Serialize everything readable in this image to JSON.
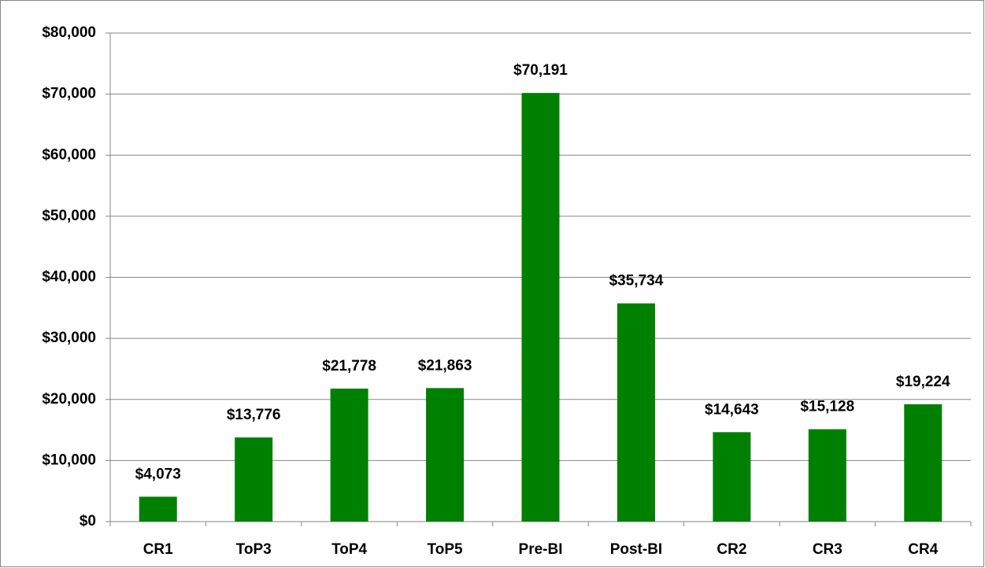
{
  "chart_data": {
    "type": "bar",
    "categories": [
      "CR1",
      "ToP3",
      "ToP4",
      "ToP5",
      "Pre-BI",
      "Post-BI",
      "CR2",
      "CR3",
      "CR4"
    ],
    "values": [
      4073,
      13776,
      21778,
      21863,
      70191,
      35734,
      14643,
      15128,
      19224
    ],
    "value_labels": [
      "$4,073",
      "$13,776",
      "$21,778",
      "$21,863",
      "$70,191",
      "$35,734",
      "$14,643",
      "$15,128",
      "$19,224"
    ],
    "color": "#008000",
    "ylim": [
      0,
      80000
    ],
    "yticks": [
      {
        "value": 0,
        "label": "$0"
      },
      {
        "value": 10000,
        "label": "$10,000"
      },
      {
        "value": 20000,
        "label": "$20,000"
      },
      {
        "value": 30000,
        "label": "$30,000"
      },
      {
        "value": 40000,
        "label": "$40,000"
      },
      {
        "value": 50000,
        "label": "$50,000"
      },
      {
        "value": 60000,
        "label": "$60,000"
      },
      {
        "value": 70000,
        "label": "$70,000"
      },
      {
        "value": 80000,
        "label": "$80,000"
      }
    ],
    "grid": true
  }
}
